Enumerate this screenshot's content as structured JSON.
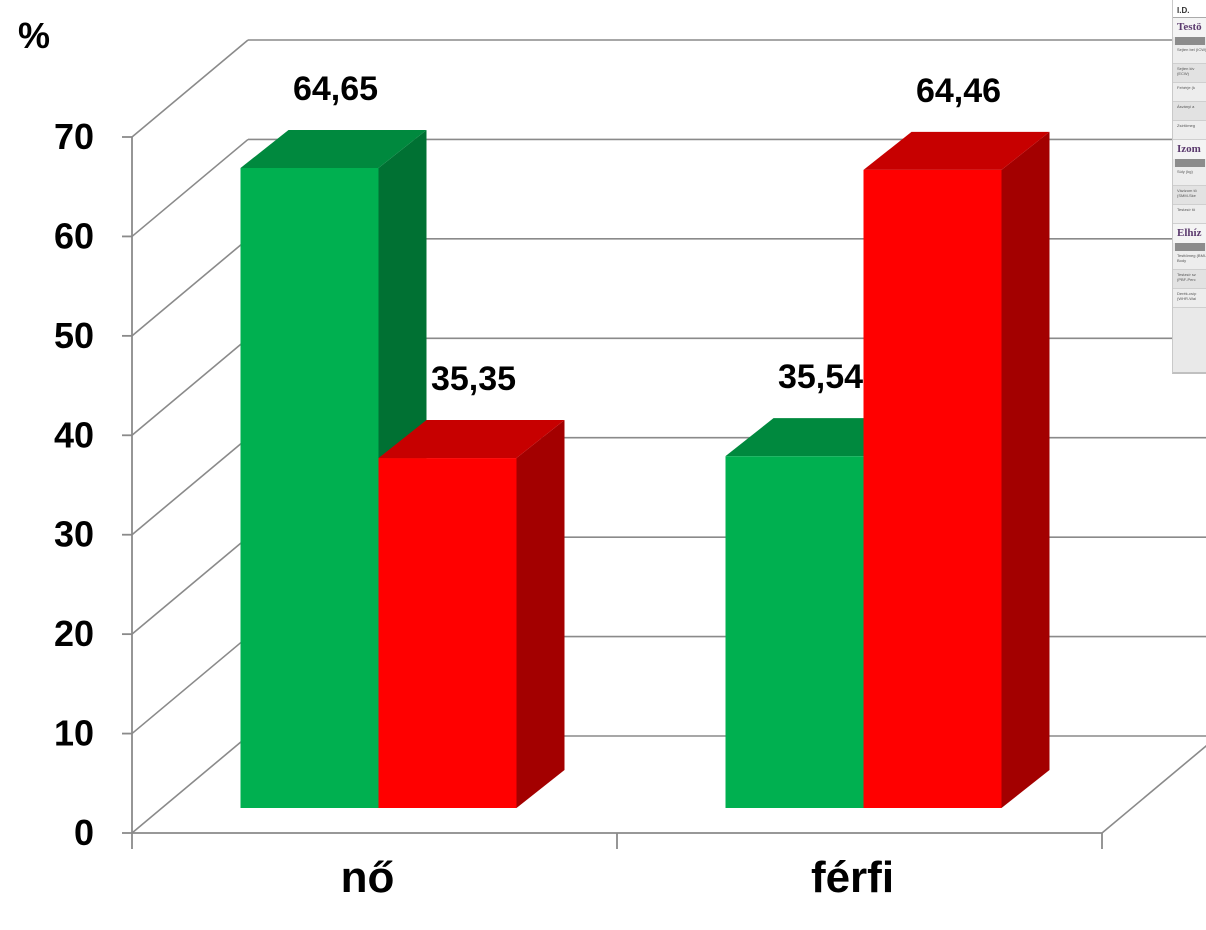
{
  "chart_data": {
    "type": "bar",
    "categories": [
      "nő",
      "férfi"
    ],
    "series": [
      {
        "color": "#00b050",
        "values": [
          64.65,
          35.54
        ],
        "labels": [
          "64,65",
          "35,54"
        ]
      },
      {
        "color": "#ff0000",
        "values": [
          35.35,
          64.46
        ],
        "labels": [
          "35,35",
          "64,46"
        ]
      }
    ],
    "ylabel": "%",
    "ylim": [
      0,
      70
    ],
    "yticks": [
      0,
      10,
      20,
      30,
      40,
      50,
      60,
      70
    ],
    "grid": true,
    "style": "3d-column"
  },
  "inset": {
    "id_label": "I.D.",
    "sections": [
      {
        "title": "Testö",
        "rows": [
          "Sejten bel (ICW)",
          "Sejten kiv (ECW)",
          "Fehérje (k",
          "Ásványi a",
          "Zsírtömeg"
        ]
      },
      {
        "title": "Izom",
        "rows": [
          "Súly (kg)",
          "Vázizom tö (SMM-Ske",
          "Testzsír tö"
        ]
      },
      {
        "title": "Elhíz",
        "rows": [
          "Testtömeg (BMI-Body",
          "Testzsír sz (PBF-Perc",
          "Derék-csíp (WHR-Wai"
        ]
      }
    ]
  }
}
